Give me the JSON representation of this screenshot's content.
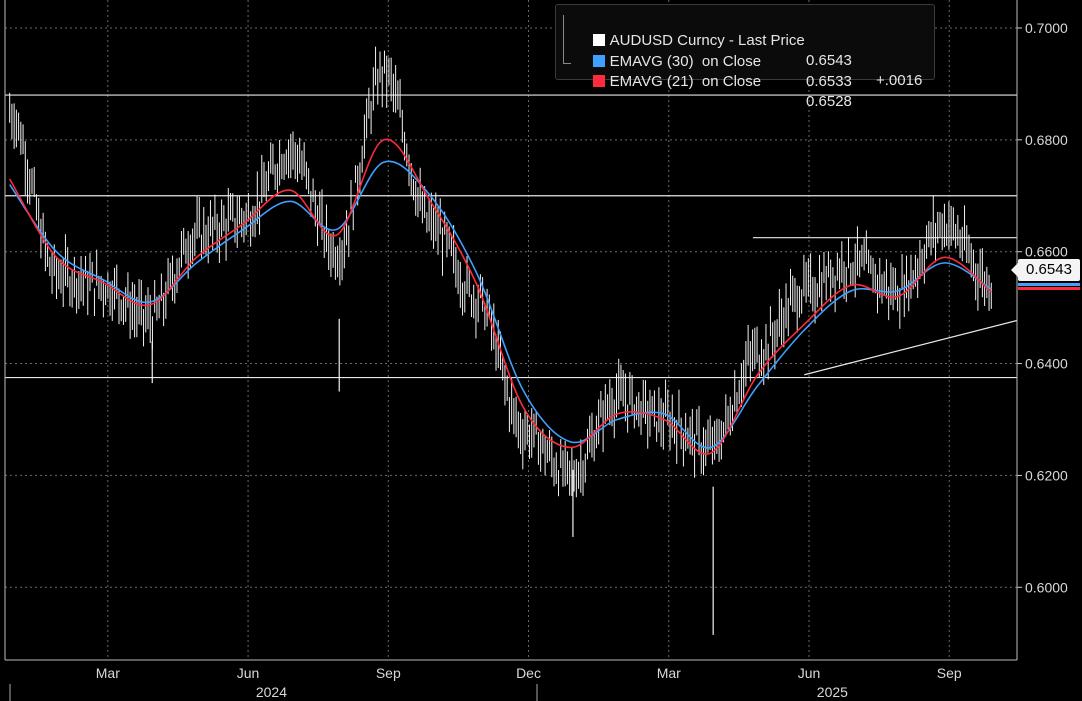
{
  "legend": {
    "rows": [
      {
        "label": "AUDUSD Curncy - Last Price",
        "value": "0.6543",
        "change": "+.0016",
        "color": "#ffffff"
      },
      {
        "label": "EMAVG (30)  on Close",
        "value": "0.6533",
        "change": "",
        "color": "#3ea0ff"
      },
      {
        "label": "EMAVG (21)  on Close",
        "value": "0.6528",
        "change": "",
        "color": "#ff2a3c"
      }
    ]
  },
  "last_price_tag": "0.6543",
  "chart_data": {
    "type": "line",
    "title": "",
    "xlabel": "",
    "ylabel": "",
    "ylim": [
      0.588,
      0.705
    ],
    "y_ticks": [
      "0.7000",
      "0.6800",
      "0.6600",
      "0.6400",
      "0.6200",
      "0.6000"
    ],
    "x_ticks": [
      "Mar",
      "Jun",
      "Sep",
      "Dec",
      "Mar",
      "Jun",
      "Sep"
    ],
    "x_years": [
      "2024",
      "2025"
    ],
    "grid": true,
    "legend_position": "top-right",
    "colors": {
      "price": "#ffffff",
      "ema30": "#3ea0ff",
      "ema21": "#ff2a3c",
      "background": "#000000",
      "grid": "#6a6a6a"
    },
    "x": [
      "2024-01",
      "2024-02",
      "2024-03",
      "2024-04",
      "2024-05",
      "2024-06",
      "2024-07",
      "2024-08",
      "2024-09",
      "2024-10",
      "2024-11",
      "2024-12",
      "2025-01",
      "2025-02",
      "2025-03",
      "2025-04",
      "2025-05",
      "2025-06",
      "2025-07",
      "2025-08",
      "2025-09",
      "2025-10"
    ],
    "series": [
      {
        "name": "AUDUSD Curncy - Last Price",
        "values": [
          0.685,
          0.656,
          0.654,
          0.648,
          0.663,
          0.666,
          0.678,
          0.66,
          0.692,
          0.665,
          0.652,
          0.628,
          0.62,
          0.634,
          0.63,
          0.625,
          0.642,
          0.653,
          0.658,
          0.653,
          0.665,
          0.6543
        ]
      },
      {
        "name": "EMAVG (30)  on Close",
        "values": [
          0.672,
          0.66,
          0.655,
          0.651,
          0.658,
          0.664,
          0.669,
          0.664,
          0.676,
          0.67,
          0.656,
          0.635,
          0.626,
          0.63,
          0.631,
          0.625,
          0.636,
          0.646,
          0.653,
          0.653,
          0.658,
          0.6533
        ]
      },
      {
        "name": "EMAVG (21)  on Close",
        "values": [
          0.673,
          0.659,
          0.6545,
          0.6505,
          0.659,
          0.665,
          0.671,
          0.663,
          0.68,
          0.669,
          0.654,
          0.632,
          0.625,
          0.631,
          0.63,
          0.624,
          0.638,
          0.647,
          0.654,
          0.652,
          0.659,
          0.6528
        ]
      }
    ],
    "reference_lines": [
      0.688,
      0.67,
      0.6625,
      0.6375
    ],
    "trendline": [
      {
        "x": "2025-06",
        "y": 0.638
      },
      {
        "x": "2025-10",
        "y": 0.647
      }
    ]
  }
}
